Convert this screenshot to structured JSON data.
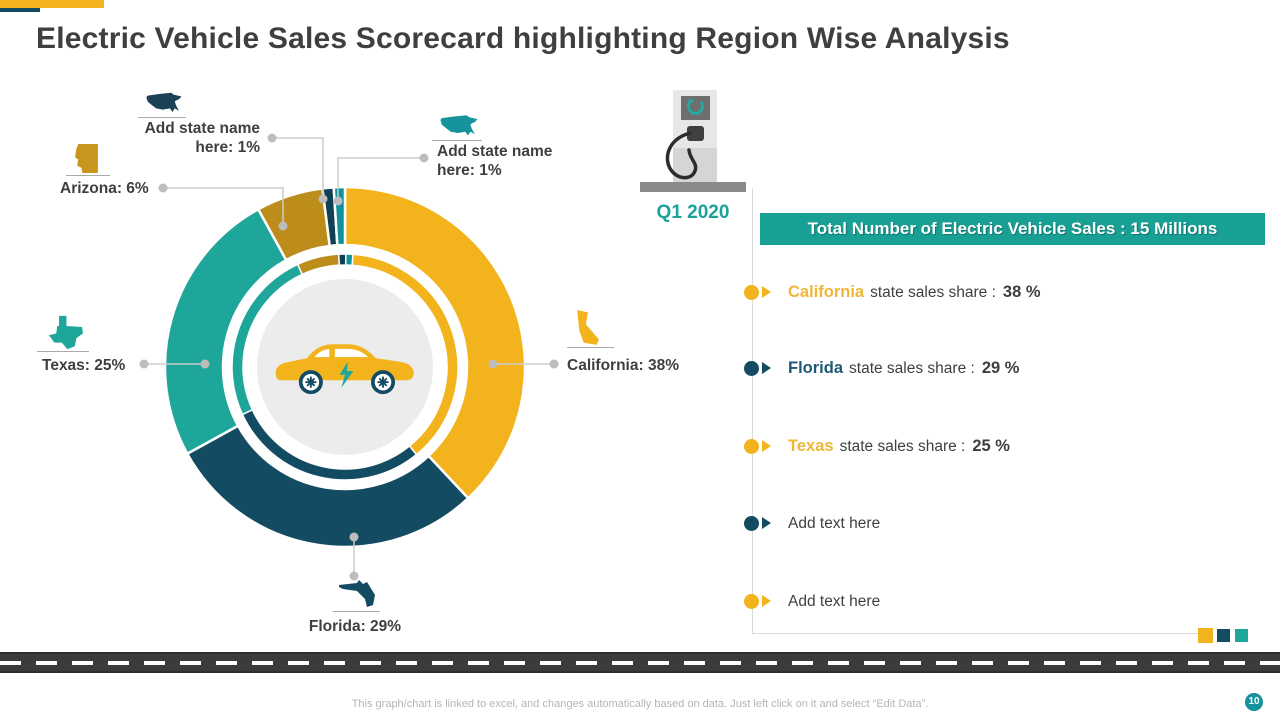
{
  "title": "Electric Vehicle Sales Scorecard highlighting Region Wise Analysis",
  "chart_data": {
    "type": "pie",
    "title": "",
    "unit": "%",
    "total_label": "Total Number of Electric Vehicle Sales : 15 Millions",
    "segments": [
      {
        "label": "California",
        "value": 38,
        "color": "#F2B31D"
      },
      {
        "label": "Florida",
        "value": 29,
        "color": "#134B63"
      },
      {
        "label": "Texas",
        "value": 25,
        "color": "#1FA69B"
      },
      {
        "label": "Arizona",
        "value": 6,
        "color": "#BC8D1B"
      },
      {
        "label": "Add state name here",
        "value": 1,
        "color": "#113F54"
      },
      {
        "label": "Add state name here",
        "value": 1,
        "color": "#0F929B"
      }
    ],
    "donut_hole_icon": "electric-car",
    "legend_position": "right"
  },
  "callouts": {
    "add_state_1": {
      "line1": "Add state name",
      "line2": "here: 1%"
    },
    "add_state_2": {
      "line1": "Add state name",
      "line2": "here: 1%"
    },
    "arizona": {
      "text": "Arizona: 6%"
    },
    "texas": {
      "text": "Texas: 25%"
    },
    "california": {
      "text": "California: 38%"
    },
    "florida": {
      "text": "Florida: 29%"
    }
  },
  "period": {
    "label": "Q1 2020"
  },
  "banner": {
    "text": "Total Number of Electric Vehicle Sales : 15 Millions",
    "bg": "#18A094"
  },
  "legend_rows": [
    {
      "name": "California",
      "rest": "state sales share :",
      "value": "38 %",
      "bullet_color": "#F2B31D",
      "name_color": "#EFB637"
    },
    {
      "name": "Florida",
      "rest": "state sales share :",
      "value": "29 %",
      "bullet_color": "#134B63",
      "name_color": "#1E5875"
    },
    {
      "name": "Texas",
      "rest": "state sales share :",
      "value": "25 %",
      "bullet_color": "#F2B31D",
      "name_color": "#EFB637"
    },
    {
      "name": "",
      "rest": "Add text here",
      "value": "",
      "bullet_color": "#134B63",
      "name_color": ""
    },
    {
      "name": "",
      "rest": "Add text here",
      "value": "",
      "bullet_color": "#F2B31D",
      "name_color": ""
    }
  ],
  "footer": {
    "note": "This graph/chart is linked to excel, and changes automatically based on data. Just left click on it and select “Edit Data”.",
    "page": "10"
  }
}
